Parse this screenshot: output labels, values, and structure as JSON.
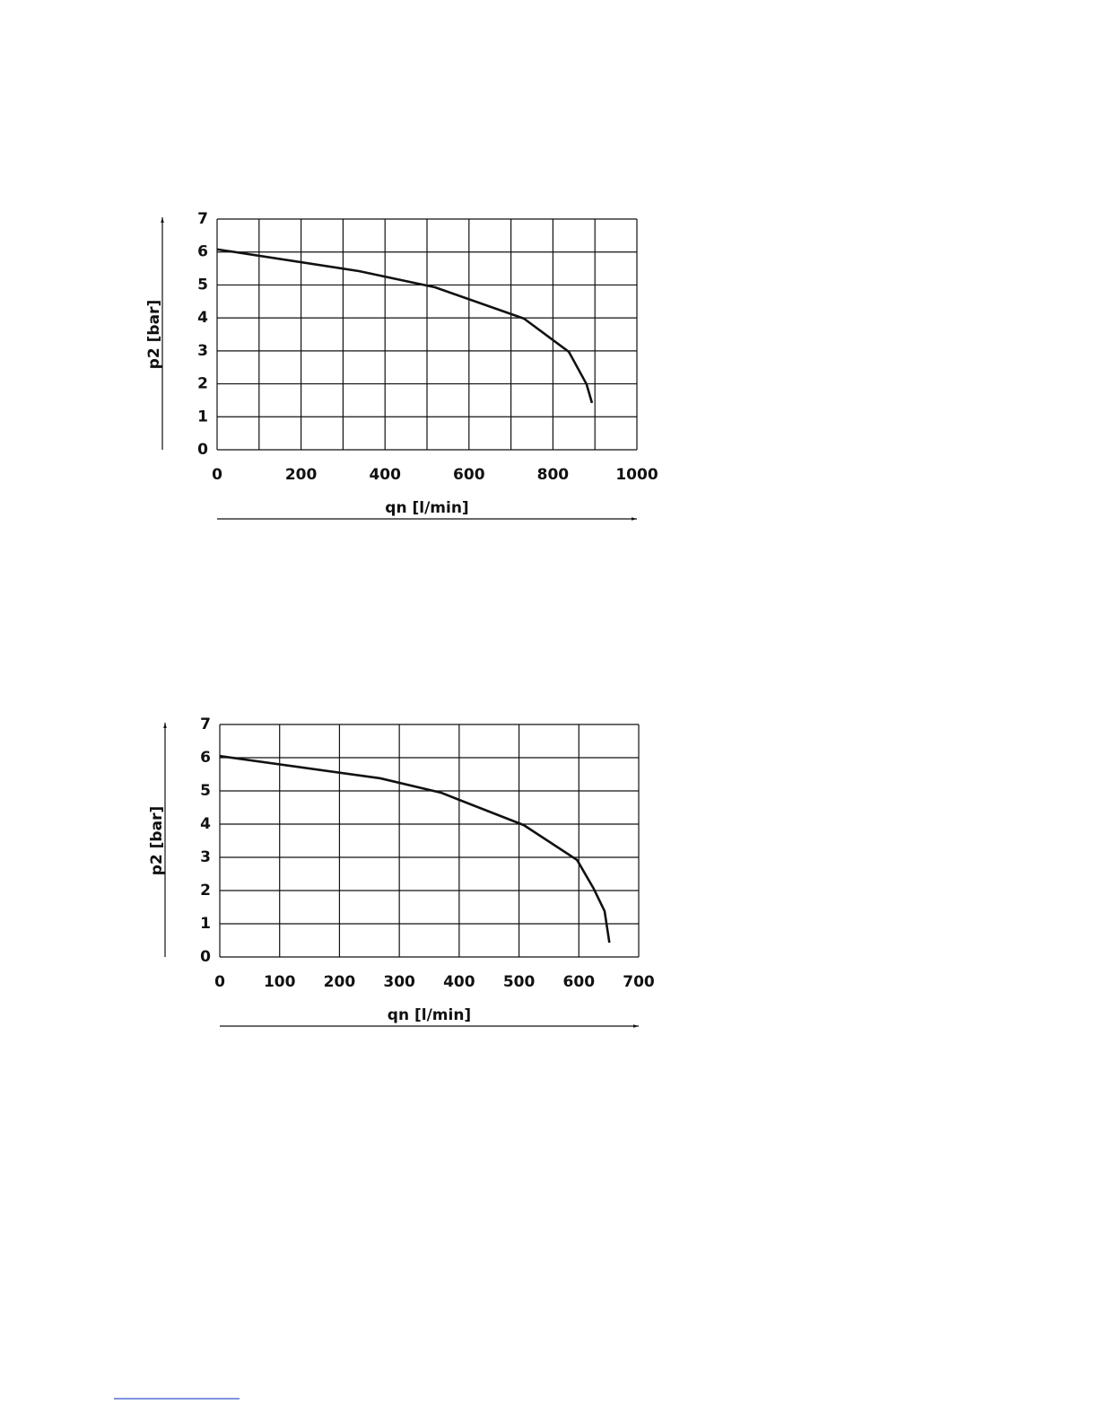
{
  "chart_data": [
    {
      "type": "line",
      "x_label": "qn [l/min]",
      "y_label": "p2 [bar]",
      "series": [
        {
          "color": "#111111",
          "x": [
            0,
            338,
            519,
            731,
            838,
            880,
            893
          ],
          "values": [
            6.08,
            5.42,
            4.93,
            3.98,
            2.97,
            1.99,
            1.42
          ]
        }
      ],
      "xlim": [
        0,
        1000
      ],
      "xticks": [
        0,
        200,
        400,
        600,
        800,
        1000
      ],
      "xgrid": [
        0,
        100,
        200,
        300,
        400,
        500,
        600,
        700,
        800,
        900,
        1000
      ],
      "ylim": [
        0,
        7
      ],
      "yticks": [
        0,
        1,
        2,
        3,
        4,
        5,
        6,
        7
      ],
      "grid": true
    },
    {
      "type": "line",
      "x_label": "qn [l/min]",
      "y_label": "p2 [bar]",
      "series": [
        {
          "color": "#111111",
          "x": [
            0,
            268,
            369,
            508,
            597,
            625,
            643,
            651
          ],
          "values": [
            6.05,
            5.38,
            4.95,
            3.97,
            2.92,
            2.05,
            1.38,
            0.43
          ]
        }
      ],
      "xlim": [
        0,
        700
      ],
      "xticks": [
        0,
        100,
        200,
        300,
        400,
        500,
        600,
        700
      ],
      "xgrid": [
        0,
        100,
        200,
        300,
        400,
        500,
        600,
        700
      ],
      "ylim": [
        0,
        7
      ],
      "yticks": [
        0,
        1,
        2,
        3,
        4,
        5,
        6,
        7
      ],
      "grid": true
    }
  ]
}
